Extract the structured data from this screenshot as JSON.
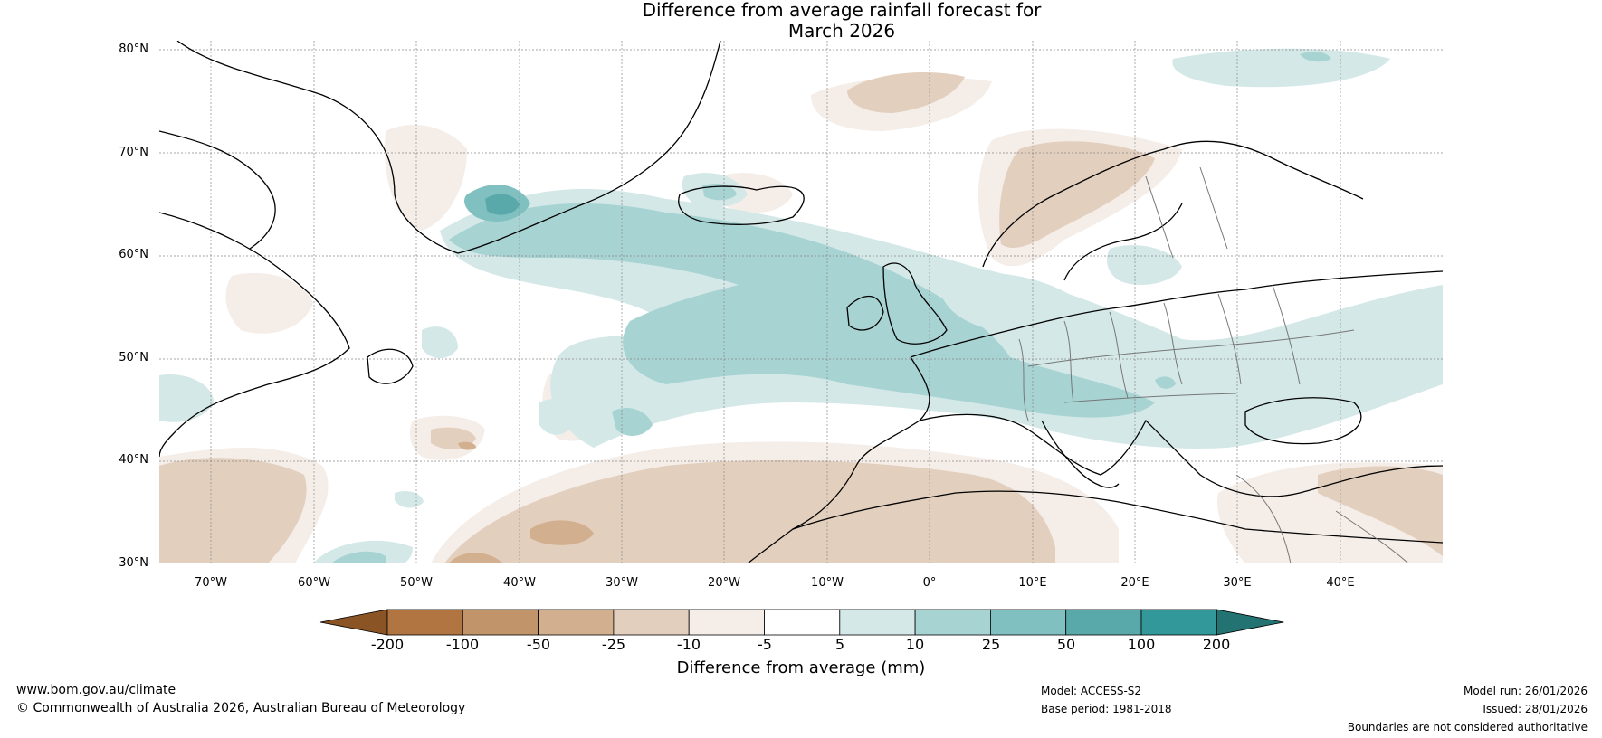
{
  "title_line1": "Difference from average rainfall forecast for",
  "title_line2": "March 2026",
  "lat_labels": [
    "80°N",
    "70°N",
    "60°N",
    "50°N",
    "40°N",
    "30°N"
  ],
  "lon_labels": [
    "70°W",
    "60°W",
    "50°W",
    "40°W",
    "30°W",
    "20°W",
    "10°W",
    "0°",
    "10°E",
    "20°E",
    "30°E",
    "40°E"
  ],
  "colorbar": {
    "ticks": [
      "-200",
      "-100",
      "-50",
      "-25",
      "-10",
      "-5",
      "5",
      "10",
      "25",
      "50",
      "100",
      "200"
    ],
    "colors": [
      "#8a5424",
      "#b07540",
      "#c2946a",
      "#d2af8e",
      "#e3cfbd",
      "#f4ede8",
      "#ffffff",
      "#d4e8e8",
      "#a8d3d3",
      "#80c0c0",
      "#5aa9aa",
      "#33989a",
      "#247373"
    ],
    "label": "Difference from average (mm)"
  },
  "footer": {
    "website": "www.bom.gov.au/climate",
    "copyright": "© Commonwealth of Australia 2026, Australian Bureau of Meteorology",
    "model": "Model: ACCESS-S2",
    "base_period": "Base period: 1981-2018",
    "model_run": "Model run: 26/01/2026",
    "issued": "Issued: 28/01/2026",
    "disclaimer": "Boundaries are not considered authoritative"
  }
}
